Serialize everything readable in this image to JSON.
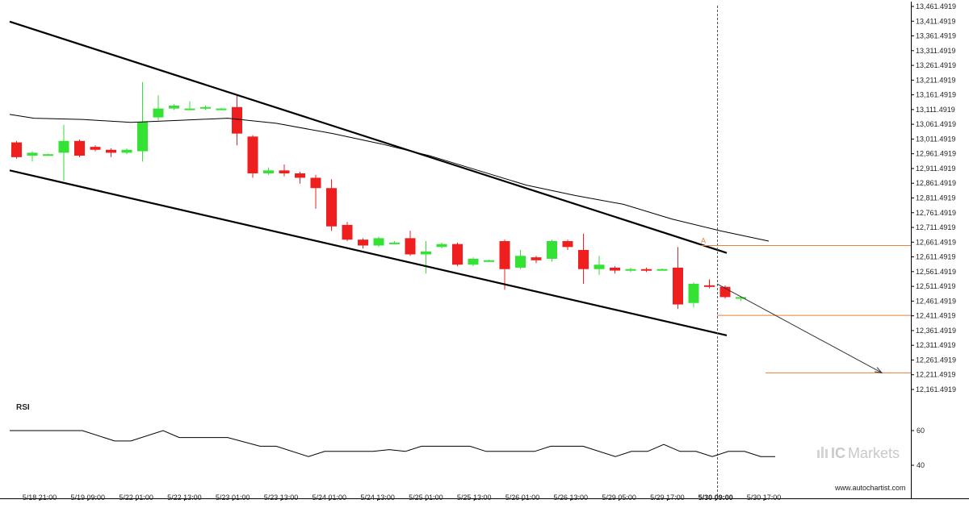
{
  "chart_data": {
    "type": "candlestick",
    "y_ticks": [
      "13,461.4919",
      "13,411.4919",
      "13,361.4919",
      "13,311.4919",
      "13,261.4919",
      "13,211.4919",
      "13,161.4919",
      "13,111.4919",
      "13,061.4919",
      "13,011.4919",
      "12,961.4919",
      "12,911.4919",
      "12,861.4919",
      "12,811.4919",
      "12,761.4919",
      "12,711.4919",
      "12,661.4919",
      "12,611.4919",
      "12,561.4919",
      "12,511.4919",
      "12,461.4919",
      "12,411.4919",
      "12,361.4919",
      "12,311.4919",
      "12,261.4919",
      "12,211.4919",
      "12,161.4919"
    ],
    "ylim": [
      12130,
      13470
    ],
    "x_ticks": [
      "5/18 21:00",
      "5/19 09:00",
      "5/22 01:00",
      "5/22 13:00",
      "5/23 01:00",
      "5/23 13:00",
      "5/24 01:00",
      "5/24 13:00",
      "5/25 01:00",
      "5/25 13:00",
      "5/26 01:00",
      "5/26 13:00",
      "5/29 05:00",
      "5/29 17:00",
      "5/30 09:00",
      "5/30 17:00"
    ],
    "bold_x_tick": "5/30 09:00",
    "candles": [
      [
        13000,
        12950,
        13005,
        12945
      ],
      [
        12955,
        12965,
        12970,
        12935
      ],
      [
        12960,
        12960,
        12962,
        12958
      ],
      [
        12965,
        13005,
        13060,
        12870
      ],
      [
        13005,
        12955,
        13010,
        12950
      ],
      [
        12985,
        12975,
        12990,
        12970
      ],
      [
        12975,
        12965,
        12980,
        12950
      ],
      [
        12965,
        12975,
        12980,
        12960
      ],
      [
        12970,
        13070,
        13205,
        12935
      ],
      [
        13085,
        13115,
        13160,
        13075
      ],
      [
        13115,
        13125,
        13130,
        13110
      ],
      [
        13115,
        13115,
        13140,
        13110
      ],
      [
        13115,
        13120,
        13125,
        13110
      ],
      [
        13115,
        13115,
        13118,
        13112
      ],
      [
        13120,
        13030,
        13160,
        12990
      ],
      [
        13020,
        12895,
        13025,
        12880
      ],
      [
        12895,
        12905,
        12915,
        12890
      ],
      [
        12905,
        12895,
        12925,
        12885
      ],
      [
        12895,
        12880,
        12900,
        12860
      ],
      [
        12880,
        12845,
        12890,
        12775
      ],
      [
        12845,
        12715,
        12875,
        12700
      ],
      [
        12720,
        12670,
        12730,
        12665
      ],
      [
        12670,
        12650,
        12675,
        12640
      ],
      [
        12650,
        12675,
        12680,
        12645
      ],
      [
        12660,
        12660,
        12665,
        12655
      ],
      [
        12675,
        12620,
        12700,
        12615
      ],
      [
        12620,
        12630,
        12665,
        12555
      ],
      [
        12645,
        12655,
        12660,
        12640
      ],
      [
        12655,
        12585,
        12660,
        12580
      ],
      [
        12585,
        12605,
        12610,
        12580
      ],
      [
        12600,
        12600,
        12602,
        12598
      ],
      [
        12665,
        12570,
        12670,
        12500
      ],
      [
        12575,
        12615,
        12635,
        12570
      ],
      [
        12610,
        12600,
        12615,
        12590
      ],
      [
        12605,
        12665,
        12670,
        12595
      ],
      [
        12665,
        12645,
        12670,
        12635
      ],
      [
        12635,
        12570,
        12690,
        12520
      ],
      [
        12570,
        12585,
        12615,
        12550
      ],
      [
        12575,
        12565,
        12580,
        12555
      ],
      [
        12565,
        12570,
        12575,
        12560
      ],
      [
        12570,
        12565,
        12575,
        12560
      ],
      [
        12570,
        12570,
        12572,
        12568
      ],
      [
        12575,
        12450,
        12645,
        12435
      ],
      [
        12455,
        12520,
        12525,
        12440
      ],
      [
        12515,
        12510,
        12535,
        12505
      ],
      [
        12510,
        12475,
        12515,
        12470
      ],
      [
        12470,
        12475,
        12478,
        12462
      ]
    ],
    "moving_average": [
      [
        0,
        13095
      ],
      [
        30,
        13082
      ],
      [
        90,
        13078
      ],
      [
        150,
        13068
      ],
      [
        210,
        13075
      ],
      [
        270,
        13082
      ],
      [
        330,
        13065
      ],
      [
        400,
        13030
      ],
      [
        460,
        12995
      ],
      [
        520,
        12955
      ],
      [
        580,
        12905
      ],
      [
        640,
        12855
      ],
      [
        700,
        12820
      ],
      [
        760,
        12790
      ],
      [
        820,
        12740
      ],
      [
        880,
        12700
      ],
      [
        940,
        12665
      ]
    ],
    "channel_upper": [
      [
        0,
        13410
      ],
      [
        888,
        12625
      ]
    ],
    "channel_lower": [
      [
        0,
        12905
      ],
      [
        888,
        12345
      ]
    ],
    "point_label": "A",
    "levels": [
      {
        "value": 12650,
        "from": 868,
        "to": 1128
      },
      {
        "value": 12413,
        "from": 888,
        "to": 1128
      },
      {
        "value": 12218,
        "from": 948,
        "to": 1128
      }
    ],
    "forecast": [
      [
        888,
        12520
      ],
      [
        1092,
        12218
      ]
    ],
    "vline_x": 888,
    "rsi_label": "RSI",
    "rsi_ticks": [
      "60",
      "40"
    ],
    "rsi_ylim": [
      34,
      66
    ],
    "rsi": [
      [
        0,
        60
      ],
      [
        90,
        60
      ],
      [
        130,
        54
      ],
      [
        150,
        54
      ],
      [
        190,
        60
      ],
      [
        210,
        56
      ],
      [
        270,
        56
      ],
      [
        310,
        51
      ],
      [
        330,
        51
      ],
      [
        370,
        45
      ],
      [
        390,
        48
      ],
      [
        450,
        48
      ],
      [
        470,
        49
      ],
      [
        490,
        48
      ],
      [
        510,
        51
      ],
      [
        570,
        51
      ],
      [
        590,
        48
      ],
      [
        650,
        48
      ],
      [
        670,
        51
      ],
      [
        710,
        51
      ],
      [
        750,
        45
      ],
      [
        770,
        48
      ],
      [
        790,
        48
      ],
      [
        810,
        52
      ],
      [
        830,
        48
      ],
      [
        850,
        48
      ],
      [
        870,
        45
      ],
      [
        890,
        48
      ],
      [
        910,
        48
      ],
      [
        930,
        45
      ],
      [
        948,
        45
      ]
    ]
  },
  "colors": {
    "bull": "#34e234",
    "bear": "#f01f1f",
    "line": "#000000",
    "level": "#e8813a",
    "grid": "#000000"
  },
  "brand": {
    "ic": "IC",
    "markets": "Markets"
  },
  "source": "www.autochartist.com"
}
